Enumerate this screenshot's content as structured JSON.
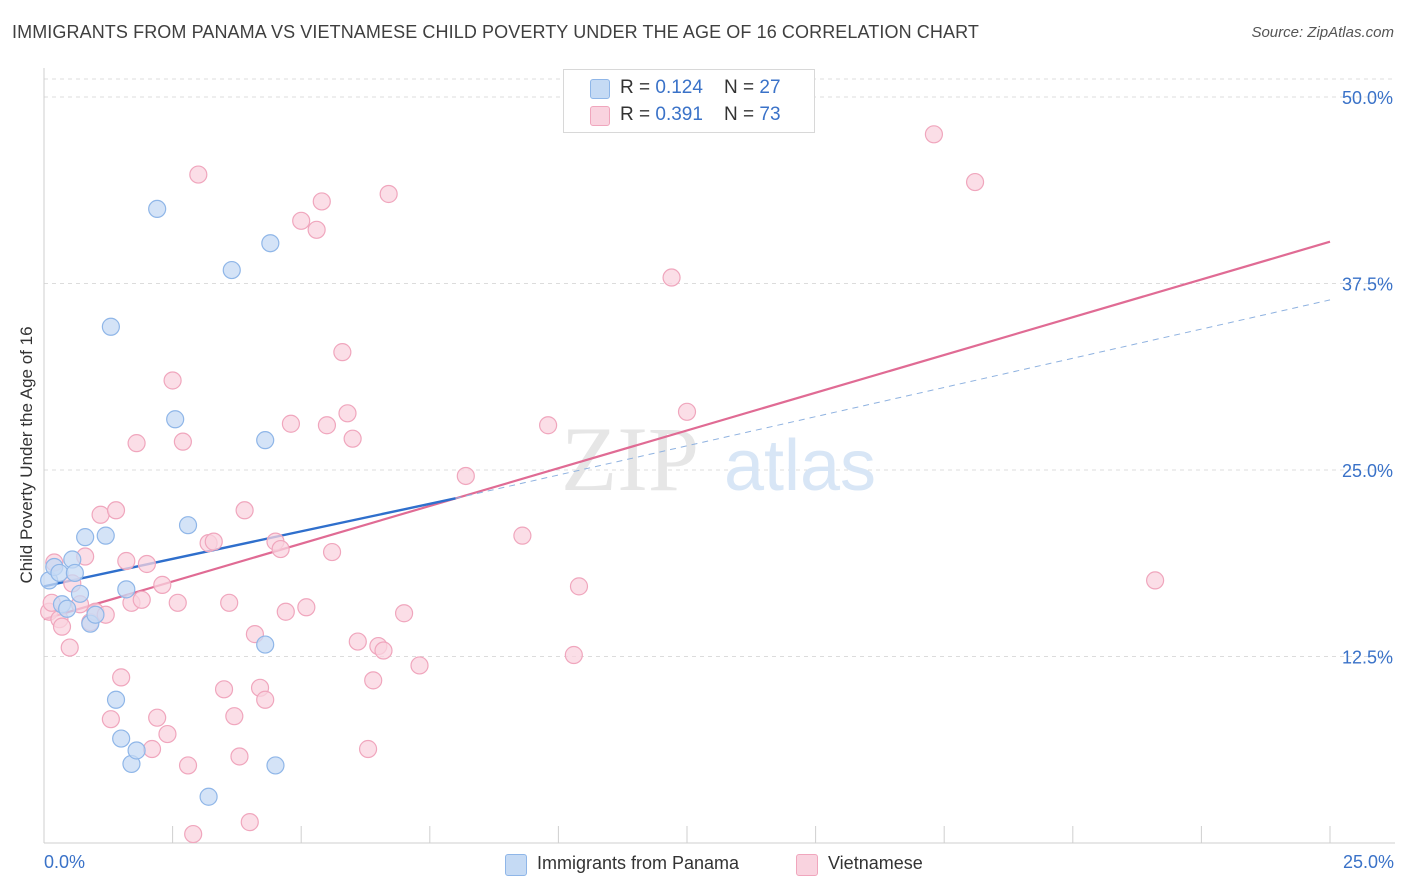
{
  "header": {
    "title": "IMMIGRANTS FROM PANAMA VS VIETNAMESE CHILD POVERTY UNDER THE AGE OF 16 CORRELATION CHART",
    "source": "Source: ZipAtlas.com"
  },
  "watermark": {
    "zip": "ZIP",
    "atlas": "atlas"
  },
  "legend_top": {
    "rows": [
      {
        "r_label": "R = ",
        "r_value": "0.124",
        "n_label": "N = ",
        "n_value": "27"
      },
      {
        "r_label": "R = ",
        "r_value": "0.391",
        "n_label": "N = ",
        "n_value": "73"
      }
    ]
  },
  "chart_data": {
    "type": "scatter",
    "title": "IMMIGRANTS FROM PANAMA VS VIETNAMESE CHILD POVERTY UNDER THE AGE OF 16 CORRELATION CHART",
    "xlabel": "",
    "ylabel": "Child Poverty Under the Age of 16",
    "xlim": [
      0,
      25
    ],
    "ylim": [
      0,
      50
    ],
    "x_tick_labels": [
      "0.0%",
      "25.0%"
    ],
    "y_ticks": [
      12.5,
      25,
      37.5,
      50
    ],
    "y_tick_labels": [
      "12.5%",
      "25.0%",
      "37.5%",
      "50.0%"
    ],
    "grid": true,
    "legend_position": "bottom",
    "series": [
      {
        "name": "Immigrants from Panama",
        "color": "#8fb6e8",
        "fill": "#c5daf4",
        "line_color": "#2f6fcc",
        "trend": {
          "x0": 0,
          "y0": 17.2,
          "x1": 8.0,
          "y1": 23.1,
          "dashed_to_x": 25,
          "dashed_to_y": 36.4
        },
        "points": [
          [
            0.1,
            17.6
          ],
          [
            0.2,
            18.5
          ],
          [
            0.3,
            18.1
          ],
          [
            0.35,
            16.0
          ],
          [
            0.45,
            15.7
          ],
          [
            0.55,
            19.0
          ],
          [
            0.6,
            18.1
          ],
          [
            0.7,
            16.7
          ],
          [
            0.8,
            20.5
          ],
          [
            0.9,
            14.7
          ],
          [
            1.0,
            15.3
          ],
          [
            1.2,
            20.6
          ],
          [
            1.3,
            34.6
          ],
          [
            1.4,
            9.6
          ],
          [
            1.5,
            7.0
          ],
          [
            1.6,
            17.0
          ],
          [
            1.7,
            5.3
          ],
          [
            1.8,
            6.2
          ],
          [
            2.2,
            42.5
          ],
          [
            2.55,
            28.4
          ],
          [
            2.8,
            21.3
          ],
          [
            3.2,
            3.1
          ],
          [
            3.65,
            38.4
          ],
          [
            4.3,
            13.3
          ],
          [
            4.3,
            27.0
          ],
          [
            4.4,
            40.2
          ],
          [
            4.5,
            5.2
          ]
        ]
      },
      {
        "name": "Vietnamese",
        "color": "#f0a6bd",
        "fill": "#f9d3df",
        "line_color": "#e06b94",
        "trend": {
          "x0": 0,
          "y0": 15.0,
          "x1": 25,
          "y1": 40.3
        },
        "points": [
          [
            0.1,
            15.5
          ],
          [
            0.15,
            16.1
          ],
          [
            0.2,
            18.8
          ],
          [
            0.3,
            15.0
          ],
          [
            0.35,
            14.5
          ],
          [
            0.5,
            13.1
          ],
          [
            0.55,
            17.4
          ],
          [
            0.7,
            16.0
          ],
          [
            0.8,
            19.2
          ],
          [
            0.9,
            14.8
          ],
          [
            1.0,
            15.5
          ],
          [
            1.1,
            22.0
          ],
          [
            1.2,
            15.3
          ],
          [
            1.3,
            8.3
          ],
          [
            1.4,
            22.3
          ],
          [
            1.5,
            11.1
          ],
          [
            1.6,
            18.9
          ],
          [
            1.7,
            16.1
          ],
          [
            1.8,
            26.8
          ],
          [
            1.9,
            16.3
          ],
          [
            2.0,
            18.7
          ],
          [
            2.1,
            6.3
          ],
          [
            2.2,
            8.4
          ],
          [
            2.3,
            17.3
          ],
          [
            2.4,
            7.3
          ],
          [
            2.5,
            31.0
          ],
          [
            2.6,
            16.1
          ],
          [
            2.7,
            26.9
          ],
          [
            2.8,
            5.2
          ],
          [
            2.9,
            0.6
          ],
          [
            3.0,
            44.8
          ],
          [
            3.2,
            20.1
          ],
          [
            3.3,
            20.2
          ],
          [
            3.5,
            10.3
          ],
          [
            3.6,
            16.1
          ],
          [
            3.7,
            8.5
          ],
          [
            3.8,
            5.8
          ],
          [
            3.9,
            22.3
          ],
          [
            4.0,
            1.4
          ],
          [
            4.1,
            14.0
          ],
          [
            4.2,
            10.4
          ],
          [
            4.3,
            9.6
          ],
          [
            4.5,
            20.2
          ],
          [
            4.6,
            19.7
          ],
          [
            4.7,
            15.5
          ],
          [
            4.8,
            28.1
          ],
          [
            5.0,
            41.7
          ],
          [
            5.1,
            15.8
          ],
          [
            5.3,
            41.1
          ],
          [
            5.4,
            43.0
          ],
          [
            5.5,
            28.0
          ],
          [
            5.6,
            19.5
          ],
          [
            5.8,
            32.9
          ],
          [
            5.9,
            28.8
          ],
          [
            6.0,
            27.1
          ],
          [
            6.1,
            13.5
          ],
          [
            6.3,
            6.3
          ],
          [
            6.4,
            10.9
          ],
          [
            6.5,
            13.2
          ],
          [
            6.6,
            12.9
          ],
          [
            6.7,
            43.5
          ],
          [
            7.0,
            15.4
          ],
          [
            7.3,
            11.9
          ],
          [
            8.2,
            24.6
          ],
          [
            9.3,
            20.6
          ],
          [
            9.8,
            28.0
          ],
          [
            10.3,
            12.6
          ],
          [
            10.4,
            17.2
          ],
          [
            12.2,
            37.9
          ],
          [
            12.5,
            28.9
          ],
          [
            17.3,
            47.5
          ],
          [
            18.1,
            44.3
          ],
          [
            21.6,
            17.6
          ]
        ]
      }
    ]
  }
}
